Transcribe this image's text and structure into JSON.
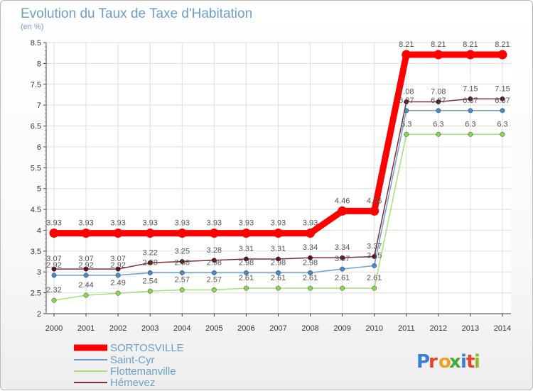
{
  "chart_data": {
    "type": "line",
    "title": "Evolution du Taux de Taxe d'Habitation",
    "subtitle": "(en %)",
    "x": [
      "2000",
      "2001",
      "2002",
      "2003",
      "2004",
      "2005",
      "2006",
      "2007",
      "2008",
      "2009",
      "2010",
      "2011",
      "2012",
      "2013",
      "2014"
    ],
    "ylim": [
      2,
      8.5
    ],
    "yticks": [
      "2",
      "2.5",
      "3",
      "3.5",
      "4",
      "4.5",
      "5",
      "5.5",
      "6",
      "6.5",
      "7",
      "7.5",
      "8",
      "8.5"
    ],
    "grid": true,
    "legend_position": "bottom-left",
    "series": [
      {
        "name": "SORTOSVILLE",
        "color": "#ff0000",
        "marker": "#ff0000",
        "width": 9,
        "values": [
          3.93,
          3.93,
          3.93,
          3.93,
          3.93,
          3.93,
          3.93,
          3.93,
          3.93,
          4.46,
          4.46,
          8.21,
          8.21,
          8.21,
          8.21
        ]
      },
      {
        "name": "Saint-Cyr",
        "color": "#6f9fcf",
        "marker": "#4a8ac8",
        "width": 1.5,
        "values": [
          2.92,
          2.92,
          2.92,
          2.98,
          2.98,
          2.98,
          2.98,
          2.98,
          2.98,
          3.07,
          3.15,
          6.87,
          6.87,
          6.87,
          6.87
        ],
        "labels": [
          "2.92",
          "2.92",
          "2.92",
          "2.98",
          "2.98",
          "2.98",
          "2.98",
          "2.98",
          "2.98",
          "3.07",
          "3.15",
          "6.87",
          "6.87",
          "6.87",
          "6.87"
        ]
      },
      {
        "name": "Flottemanville",
        "color": "#a6e07a",
        "marker": "#8ad850",
        "width": 1.5,
        "values": [
          2.32,
          2.44,
          2.49,
          2.54,
          2.57,
          2.57,
          2.61,
          2.61,
          2.61,
          2.61,
          2.61,
          6.3,
          6.3,
          6.3,
          6.3
        ],
        "labels": [
          "2.32",
          "2.44",
          "2.49",
          "2.54",
          "2.57",
          "2.57",
          "2.61",
          "2.61",
          "2.61",
          "2.61",
          "2.61",
          "6.3",
          "6.3",
          "6.3",
          "6.3"
        ]
      },
      {
        "name": "Hémevez",
        "color": "#7a3036",
        "marker": "#5a1418",
        "width": 1.5,
        "values": [
          3.07,
          3.07,
          3.07,
          3.22,
          3.25,
          3.28,
          3.31,
          3.31,
          3.34,
          3.34,
          3.37,
          7.08,
          7.08,
          7.15,
          7.15
        ],
        "labels": [
          "3.07",
          "3.07",
          "3.07",
          "3.22",
          "3.25",
          "3.28",
          "3.31",
          "3.31",
          "3.34",
          "3.34",
          "3.37",
          "7.08",
          "7.08",
          "7.15",
          "7.15"
        ]
      }
    ],
    "sortosville_labels": [
      "3.93",
      "3.93",
      "3.93",
      "3.93",
      "3.93",
      "3.93",
      "3.93",
      "3.93",
      "3.93",
      "4.46",
      "4.46",
      "8.21",
      "8.21",
      "8.21",
      "8.21"
    ]
  },
  "brand": {
    "logo_text": "Proxiti",
    "letter_colors": [
      "#3a7fd0",
      "#e8432a",
      "#f0a020",
      "#47a83c",
      "#3a7fd0",
      "#e8432a",
      "#8dbb2a"
    ]
  }
}
